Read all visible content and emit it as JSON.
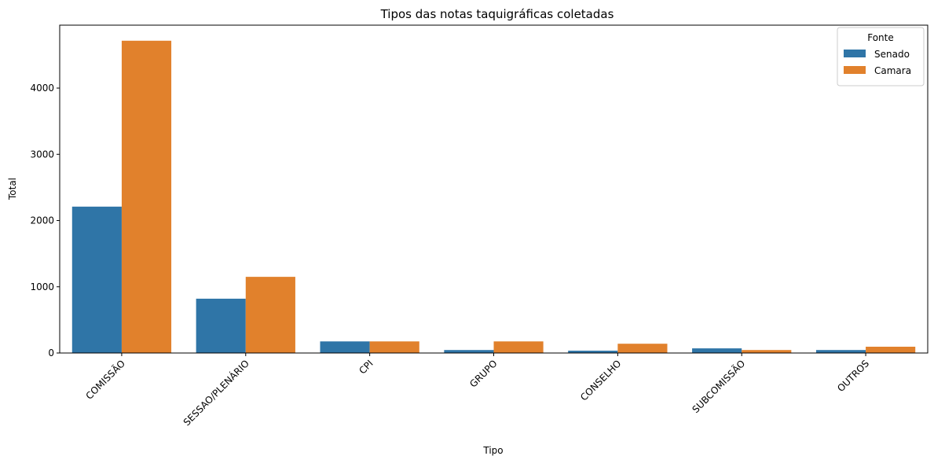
{
  "chart_data": {
    "type": "bar",
    "title": "Tipos das notas taquigráficas coletadas",
    "xlabel": "Tipo",
    "ylabel": "Total",
    "categories": [
      "COMISSÃO",
      "SESSAO/PLENÁRIO",
      "CPI",
      "GRUPO",
      "CONSELHO",
      "SUBCOMISSÃO",
      "OUTROS"
    ],
    "series": [
      {
        "name": "Senado",
        "values": [
          2210,
          820,
          175,
          45,
          35,
          70,
          45
        ],
        "color": "#2f75a7"
      },
      {
        "name": "Camara",
        "values": [
          4715,
          1150,
          175,
          175,
          140,
          45,
          95
        ],
        "color": "#e1812c"
      }
    ],
    "ylim": [
      0,
      4950
    ],
    "yticks": [
      0,
      1000,
      2000,
      3000,
      4000
    ],
    "grid": false,
    "legend": {
      "title": "Fonte",
      "position": "top-right"
    }
  }
}
